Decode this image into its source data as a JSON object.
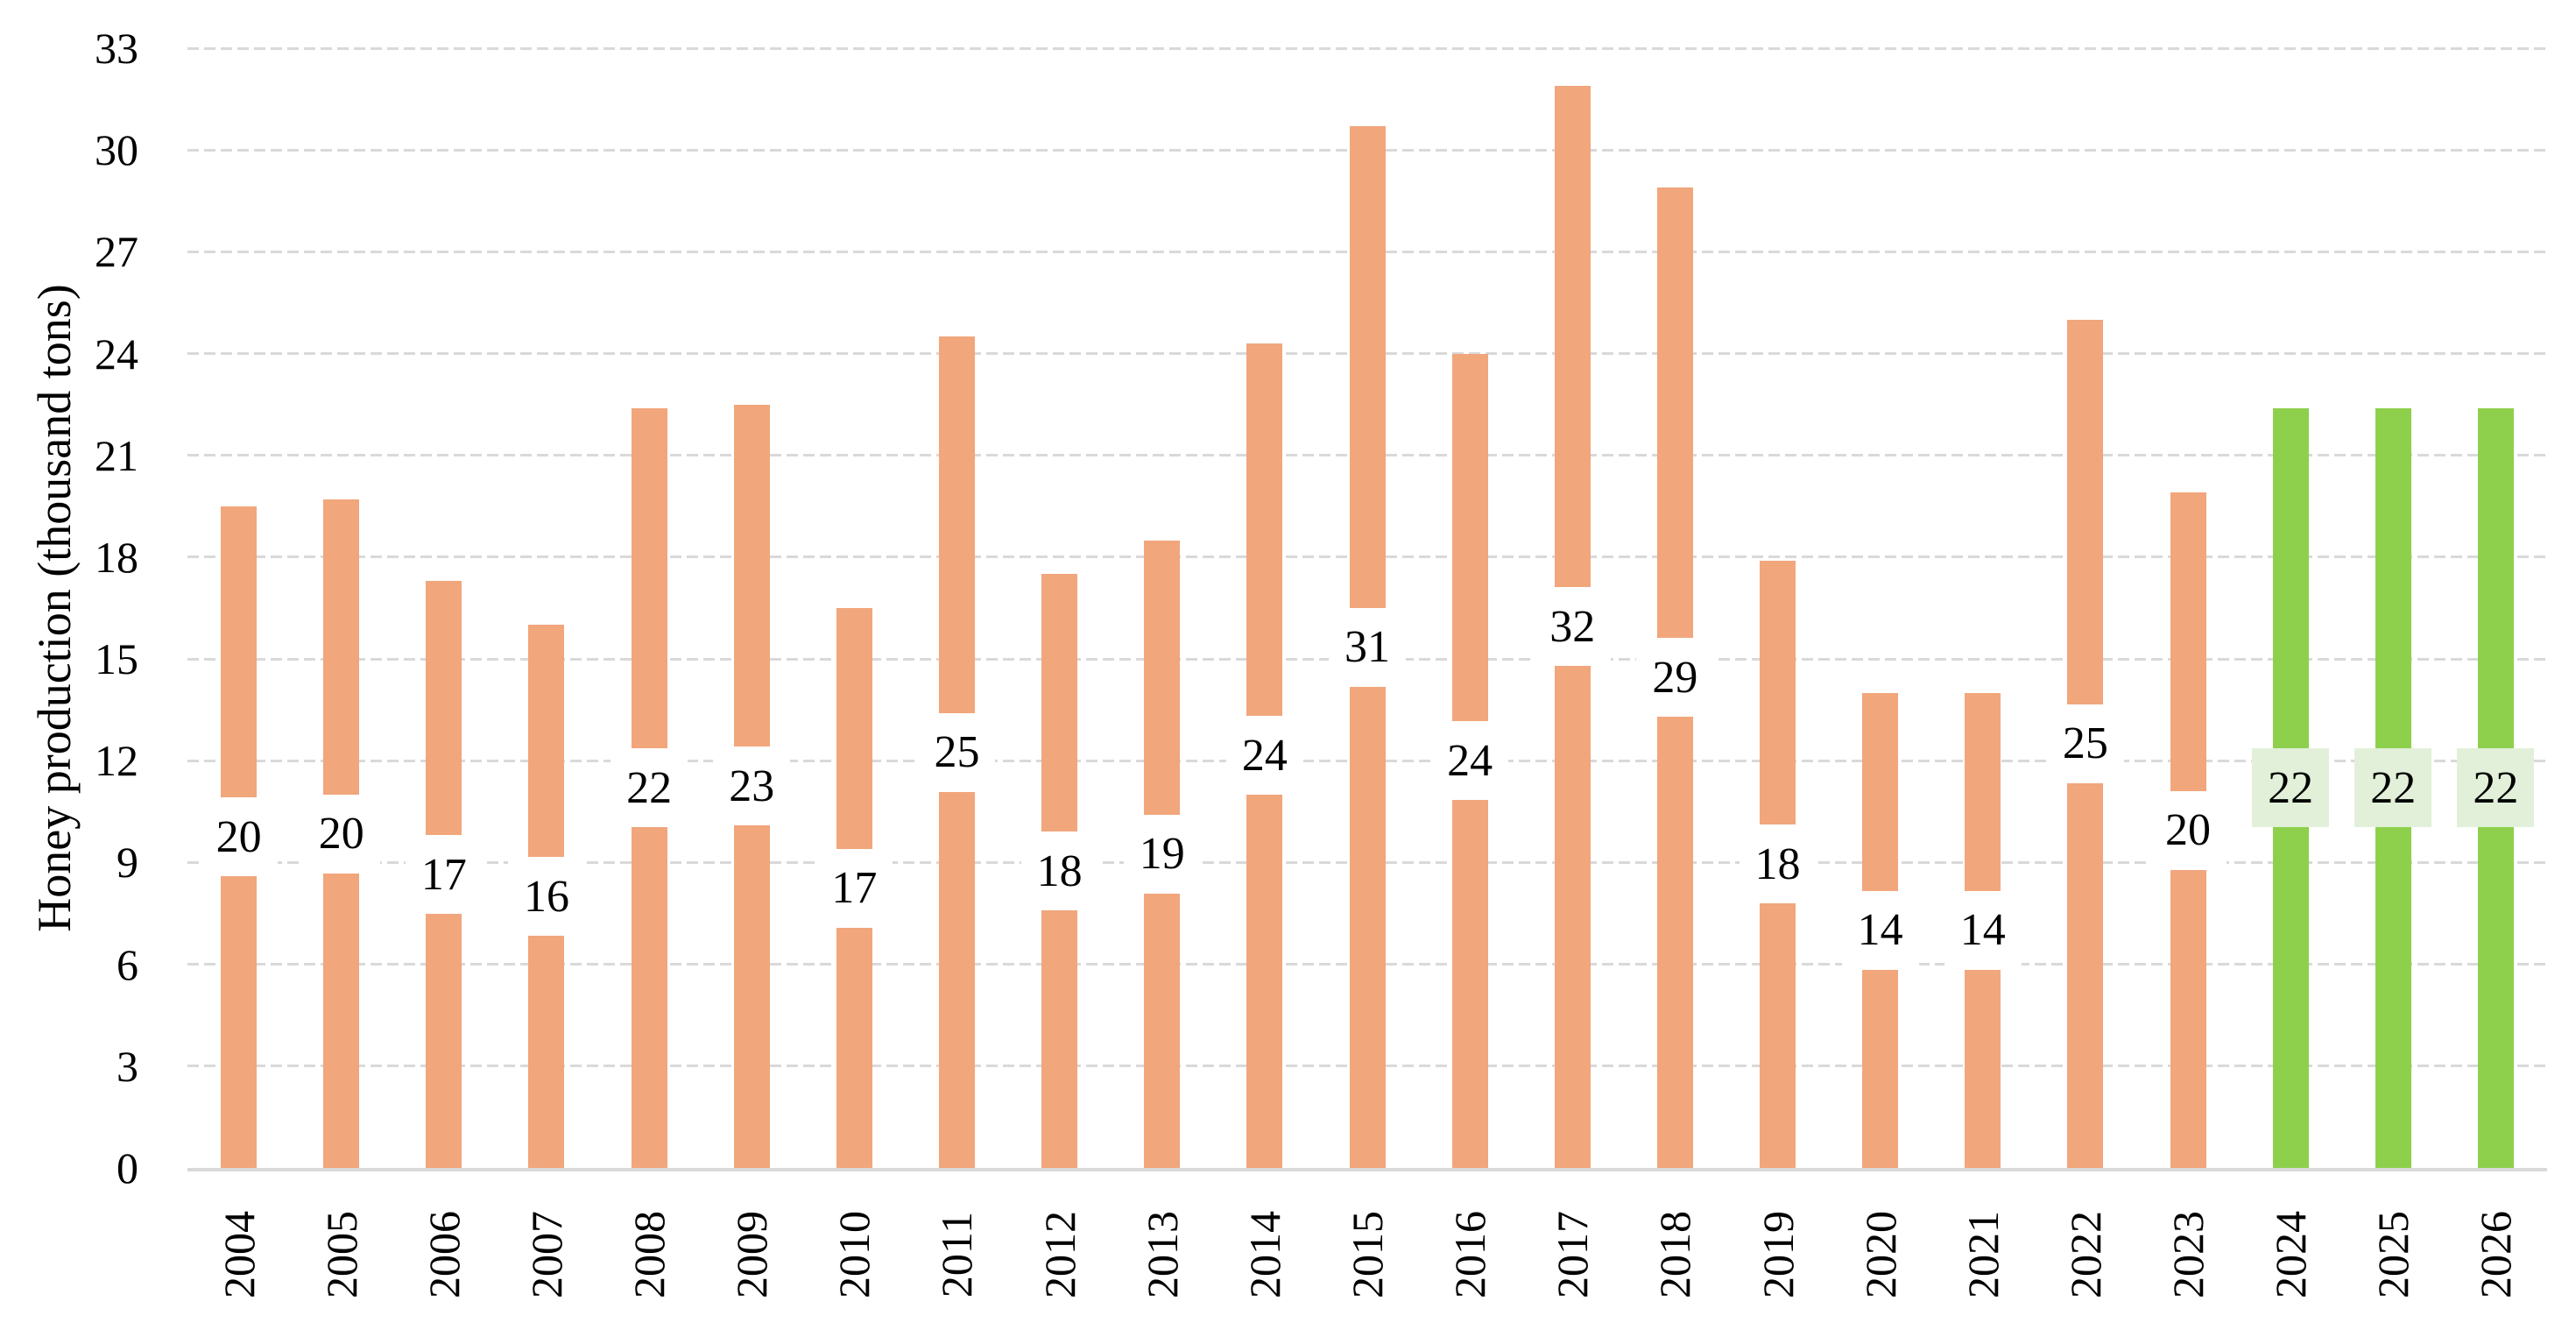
{
  "chart_data": {
    "type": "bar",
    "title": "",
    "ylabel": "Honey production (thousand tons)",
    "xlabel": "",
    "ylim": [
      0,
      33
    ],
    "ytick_step": 3,
    "yticks": [
      "0",
      "3",
      "6",
      "9",
      "12",
      "15",
      "18",
      "21",
      "24",
      "27",
      "30",
      "33"
    ],
    "gridlines": "horizontal-dashed",
    "legend_position": "none",
    "categories": [
      "2004",
      "2005",
      "2006",
      "2007",
      "2008",
      "2009",
      "2010",
      "2011",
      "2012",
      "2013",
      "2014",
      "2015",
      "2016",
      "2017",
      "2018",
      "2019",
      "2020",
      "2021",
      "2022",
      "2023",
      "2024",
      "2025",
      "2026"
    ],
    "bars": [
      {
        "year": "2004",
        "value": 19.5,
        "label": "20",
        "kind": "history"
      },
      {
        "year": "2005",
        "value": 19.7,
        "label": "20",
        "kind": "history"
      },
      {
        "year": "2006",
        "value": 17.3,
        "label": "17",
        "kind": "history"
      },
      {
        "year": "2007",
        "value": 16.0,
        "label": "16",
        "kind": "history"
      },
      {
        "year": "2008",
        "value": 22.4,
        "label": "22",
        "kind": "history"
      },
      {
        "year": "2009",
        "value": 22.5,
        "label": "23",
        "kind": "history"
      },
      {
        "year": "2010",
        "value": 16.5,
        "label": "17",
        "kind": "history"
      },
      {
        "year": "2011",
        "value": 24.5,
        "label": "25",
        "kind": "history"
      },
      {
        "year": "2012",
        "value": 17.5,
        "label": "18",
        "kind": "history"
      },
      {
        "year": "2013",
        "value": 18.5,
        "label": "19",
        "kind": "history"
      },
      {
        "year": "2014",
        "value": 24.3,
        "label": "24",
        "kind": "history"
      },
      {
        "year": "2015",
        "value": 30.7,
        "label": "31",
        "kind": "history"
      },
      {
        "year": "2016",
        "value": 24.0,
        "label": "24",
        "kind": "history"
      },
      {
        "year": "2017",
        "value": 31.9,
        "label": "32",
        "kind": "history"
      },
      {
        "year": "2018",
        "value": 28.9,
        "label": "29",
        "kind": "history"
      },
      {
        "year": "2019",
        "value": 17.9,
        "label": "18",
        "kind": "history"
      },
      {
        "year": "2020",
        "value": 14.0,
        "label": "14",
        "kind": "history"
      },
      {
        "year": "2021",
        "value": 14.0,
        "label": "14",
        "kind": "history"
      },
      {
        "year": "2022",
        "value": 25.0,
        "label": "25",
        "kind": "history"
      },
      {
        "year": "2023",
        "value": 19.9,
        "label": "20",
        "kind": "history"
      },
      {
        "year": "2024",
        "value": 22.4,
        "label": "22",
        "kind": "forecast"
      },
      {
        "year": "2025",
        "value": 22.4,
        "label": "22",
        "kind": "forecast"
      },
      {
        "year": "2026",
        "value": 22.4,
        "label": "22",
        "kind": "forecast"
      }
    ]
  },
  "style": {
    "history_bar_color": "#F1A67C",
    "forecast_bar_color": "#8ED04C",
    "history_label_bg": "#FFFFFF",
    "forecast_label_bg": "#E2F0DA",
    "gridline_color": "#D9D9D9",
    "axis_line_color": "#D9D9D9",
    "text_color": "#000000"
  }
}
